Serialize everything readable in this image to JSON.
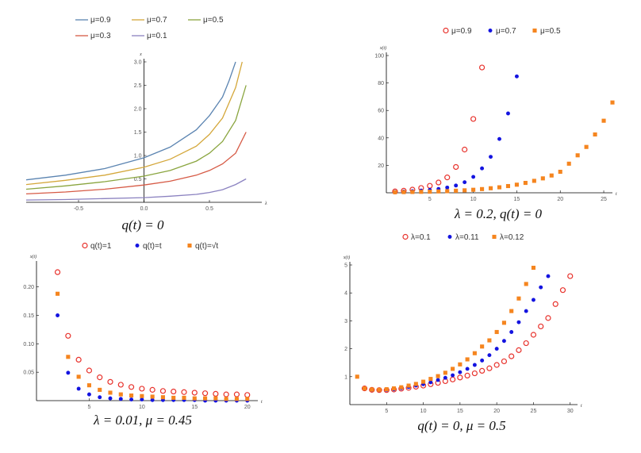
{
  "colors": {
    "axis": "#000000",
    "tick": "#555555"
  },
  "chart_data": [
    {
      "type": "line",
      "title": "",
      "caption": "q(t) = 0",
      "xlabel": "λ",
      "ylabel": "x",
      "xlim": [
        -0.9,
        0.9
      ],
      "ylim": [
        0,
        3.0
      ],
      "x_ticks": [
        -0.5,
        0.0,
        0.5
      ],
      "x_tick_labels": [
        "-0.5",
        "0.0",
        "0.5"
      ],
      "y_ticks": [
        0.5,
        1.0,
        1.5,
        2.0,
        2.5,
        3.0
      ],
      "y_tick_labels": [
        "0.5",
        "1.0",
        "1.5",
        "2.0",
        "2.5",
        "3.0"
      ],
      "legend": "top",
      "series": [
        {
          "name": "μ=0.9",
          "color": "#5b84b1",
          "x": [
            -0.9,
            -0.6,
            -0.3,
            0.0,
            0.2,
            0.4,
            0.5,
            0.6,
            0.65,
            0.7
          ],
          "y": [
            0.48,
            0.58,
            0.72,
            0.95,
            1.18,
            1.55,
            1.85,
            2.25,
            2.6,
            3.0
          ]
        },
        {
          "name": "μ=0.7",
          "color": "#d4a73a",
          "x": [
            -0.9,
            -0.6,
            -0.3,
            0.0,
            0.2,
            0.4,
            0.5,
            0.6,
            0.7,
            0.75
          ],
          "y": [
            0.38,
            0.47,
            0.58,
            0.75,
            0.92,
            1.2,
            1.45,
            1.8,
            2.45,
            3.0
          ]
        },
        {
          "name": "μ=0.5",
          "color": "#8aa53f",
          "x": [
            -0.9,
            -0.6,
            -0.3,
            0.0,
            0.2,
            0.4,
            0.5,
            0.6,
            0.7,
            0.78
          ],
          "y": [
            0.28,
            0.35,
            0.44,
            0.56,
            0.68,
            0.88,
            1.05,
            1.3,
            1.75,
            2.5
          ]
        },
        {
          "name": "μ=0.3",
          "color": "#d65a45",
          "x": [
            -0.9,
            -0.6,
            -0.3,
            0.0,
            0.2,
            0.4,
            0.5,
            0.6,
            0.7,
            0.78
          ],
          "y": [
            0.18,
            0.22,
            0.28,
            0.37,
            0.45,
            0.58,
            0.68,
            0.82,
            1.05,
            1.5
          ]
        },
        {
          "name": "μ=0.1",
          "color": "#8b82c0",
          "x": [
            -0.9,
            -0.6,
            -0.3,
            0.0,
            0.2,
            0.4,
            0.5,
            0.6,
            0.7,
            0.78
          ],
          "y": [
            0.05,
            0.06,
            0.08,
            0.1,
            0.13,
            0.17,
            0.21,
            0.27,
            0.38,
            0.5
          ]
        }
      ]
    },
    {
      "type": "scatter",
      "title": "",
      "caption": "λ = 0.2, q(t) = 0",
      "xlabel": "t",
      "ylabel": "x(t)",
      "xlim": [
        0,
        26
      ],
      "ylim": [
        0,
        100
      ],
      "x_ticks": [
        5,
        10,
        15,
        20,
        25
      ],
      "x_tick_labels": [
        "5",
        "10",
        "15",
        "20",
        "25"
      ],
      "y_ticks": [
        20,
        40,
        60,
        80,
        100
      ],
      "y_tick_labels": [
        "20",
        "40",
        "60",
        "80",
        "100"
      ],
      "legend": "top",
      "series": [
        {
          "name": "μ=0.9",
          "marker": "open-circle",
          "color": "#e8322c",
          "x": [
            1,
            2,
            3,
            4,
            5,
            6,
            7,
            8,
            9,
            10,
            11
          ],
          "y": [
            1,
            1.5,
            2.3,
            3.5,
            5.1,
            7.5,
            11.2,
            18.8,
            31.5,
            53.8,
            91.3
          ]
        },
        {
          "name": "μ=0.7",
          "marker": "filled-circle",
          "color": "#1414e0",
          "x": [
            1,
            2,
            3,
            4,
            5,
            6,
            7,
            8,
            9,
            10,
            11,
            12,
            13,
            14,
            15
          ],
          "y": [
            0.6,
            0.9,
            1.2,
            1.6,
            2.1,
            2.8,
            3.8,
            5.3,
            7.7,
            11.6,
            17.8,
            26.2,
            39.2,
            57.8,
            84.8
          ]
        },
        {
          "name": "μ=0.5",
          "marker": "filled-square",
          "color": "#f5851f",
          "x": [
            1,
            2,
            3,
            4,
            5,
            6,
            7,
            8,
            9,
            10,
            11,
            12,
            13,
            14,
            15,
            16,
            17,
            18,
            19,
            20,
            21,
            22,
            23,
            24,
            25,
            26
          ],
          "y": [
            0.4,
            0.5,
            0.6,
            0.7,
            0.8,
            1.0,
            1.2,
            1.5,
            1.8,
            2.2,
            2.7,
            3.3,
            4.0,
            4.9,
            5.9,
            7.2,
            8.7,
            10.5,
            12.6,
            15.3,
            21.2,
            27.3,
            33.4,
            42.5,
            52.5,
            65.8
          ]
        }
      ]
    },
    {
      "type": "scatter",
      "title": "",
      "caption": "λ = 0.01, μ = 0.45",
      "xlabel": "t",
      "ylabel": "x(t)",
      "xlim": [
        0,
        21
      ],
      "ylim": [
        0,
        0.24
      ],
      "x_ticks": [
        5,
        10,
        15,
        20
      ],
      "x_tick_labels": [
        "5",
        "10",
        "15",
        "20"
      ],
      "y_ticks": [
        0.05,
        0.1,
        0.15,
        0.2
      ],
      "y_tick_labels": [
        "0.05",
        "0.10",
        "0.15",
        "0.20"
      ],
      "legend": "top",
      "series": [
        {
          "name": "q(t)=1",
          "marker": "open-circle",
          "color": "#e8322c",
          "x": [
            2,
            3,
            4,
            5,
            6,
            7,
            8,
            9,
            10,
            11,
            12,
            13,
            14,
            15,
            16,
            17,
            18,
            19,
            20
          ],
          "y": [
            0.226,
            0.114,
            0.072,
            0.053,
            0.041,
            0.033,
            0.028,
            0.024,
            0.021,
            0.019,
            0.017,
            0.016,
            0.015,
            0.014,
            0.013,
            0.012,
            0.011,
            0.011,
            0.01
          ]
        },
        {
          "name": "q(t)=t",
          "marker": "filled-circle",
          "color": "#1414e0",
          "x": [
            2,
            3,
            4,
            5,
            6,
            7,
            8,
            9,
            10,
            11,
            12,
            13,
            14,
            15,
            16,
            17,
            18,
            19,
            20
          ],
          "y": [
            0.15,
            0.049,
            0.021,
            0.011,
            0.006,
            0.004,
            0.003,
            0.002,
            0.002,
            0.001,
            0.001,
            0.001,
            0.001,
            0.001,
            0.0,
            0.0,
            0.0,
            0.0,
            0.0
          ]
        },
        {
          "name": "q(t)=√t",
          "marker": "filled-square",
          "color": "#f5851f",
          "x": [
            2,
            3,
            4,
            5,
            6,
            7,
            8,
            9,
            10,
            11,
            12,
            13,
            14,
            15,
            16,
            17,
            18,
            19,
            20
          ],
          "y": [
            0.188,
            0.077,
            0.042,
            0.027,
            0.019,
            0.014,
            0.011,
            0.009,
            0.008,
            0.007,
            0.006,
            0.005,
            0.005,
            0.004,
            0.004,
            0.004,
            0.003,
            0.003,
            0.003
          ]
        }
      ]
    },
    {
      "type": "scatter",
      "title": "",
      "caption": "q(t) = 0, μ = 0.5",
      "xlabel": "t",
      "ylabel": "x(t)",
      "xlim": [
        0,
        31
      ],
      "ylim": [
        0,
        5
      ],
      "x_ticks": [
        5,
        10,
        15,
        20,
        25,
        30
      ],
      "x_tick_labels": [
        "5",
        "10",
        "15",
        "20",
        "25",
        "30"
      ],
      "y_ticks": [
        1,
        2,
        3,
        4,
        5
      ],
      "y_tick_labels": [
        "1",
        "2",
        "3",
        "4",
        "5"
      ],
      "legend": "top",
      "series": [
        {
          "name": "λ=0.1",
          "marker": "open-circle",
          "color": "#e8322c",
          "x": [
            2,
            3,
            4,
            5,
            6,
            7,
            8,
            9,
            10,
            11,
            12,
            13,
            14,
            15,
            16,
            17,
            18,
            19,
            20,
            21,
            22,
            23,
            24,
            25,
            26,
            27,
            28,
            29,
            30
          ],
          "y": [
            0.58,
            0.53,
            0.52,
            0.52,
            0.54,
            0.57,
            0.6,
            0.64,
            0.68,
            0.73,
            0.78,
            0.84,
            0.9,
            0.97,
            1.04,
            1.12,
            1.21,
            1.3,
            1.42,
            1.55,
            1.73,
            1.95,
            2.2,
            2.5,
            2.8,
            3.1,
            3.6,
            4.1,
            4.6
          ]
        },
        {
          "name": "λ=0.11",
          "marker": "filled-circle",
          "color": "#1414e0",
          "x": [
            2,
            3,
            4,
            5,
            6,
            7,
            8,
            9,
            10,
            11,
            12,
            13,
            14,
            15,
            16,
            17,
            18,
            19,
            20,
            21,
            22,
            23,
            24,
            25,
            26,
            27
          ],
          "y": [
            0.58,
            0.53,
            0.52,
            0.53,
            0.55,
            0.59,
            0.63,
            0.68,
            0.73,
            0.8,
            0.88,
            0.96,
            1.05,
            1.16,
            1.28,
            1.42,
            1.58,
            1.77,
            2.0,
            2.28,
            2.6,
            2.95,
            3.35,
            3.75,
            4.2,
            4.6
          ]
        },
        {
          "name": "λ=0.12",
          "marker": "filled-square",
          "color": "#f5851f",
          "x": [
            1,
            2,
            3,
            4,
            5,
            6,
            7,
            8,
            9,
            10,
            11,
            12,
            13,
            14,
            15,
            16,
            17,
            18,
            19,
            20,
            21,
            22,
            23,
            24,
            25
          ],
          "y": [
            1.0,
            0.58,
            0.54,
            0.53,
            0.55,
            0.58,
            0.62,
            0.68,
            0.74,
            0.82,
            0.92,
            1.02,
            1.14,
            1.28,
            1.44,
            1.62,
            1.84,
            2.08,
            2.3,
            2.6,
            2.93,
            3.35,
            3.8,
            4.32,
            4.9
          ]
        }
      ]
    }
  ]
}
